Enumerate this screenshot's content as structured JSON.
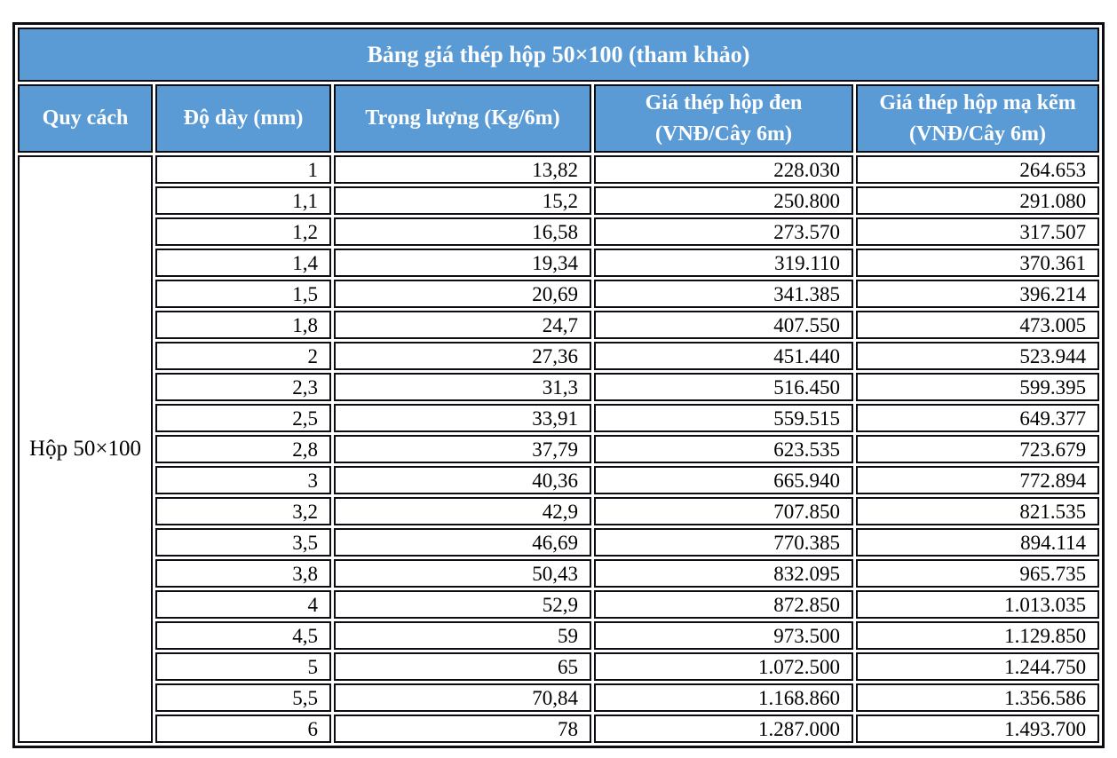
{
  "colors": {
    "header_bg": "#5b9bd5",
    "header_text": "#ffffff",
    "border": "#0c0d12",
    "cell_text": "#000000"
  },
  "chart_data": {
    "type": "table",
    "title": "Bảng giá thép hộp 50×100 (tham khảo)",
    "columns": [
      "Quy cách",
      "Độ dày (mm)",
      "Trọng lượng (Kg/6m)",
      "Giá thép hộp đen\n(VNĐ/Cây 6m)",
      "Giá thép hộp mạ kẽm\n(VNĐ/Cây 6m)"
    ],
    "spec_label": "Hộp 50×100",
    "rows": [
      [
        "1",
        "13,82",
        "228.030",
        "264.653"
      ],
      [
        "1,1",
        "15,2",
        "250.800",
        "291.080"
      ],
      [
        "1,2",
        "16,58",
        "273.570",
        "317.507"
      ],
      [
        "1,4",
        "19,34",
        "319.110",
        "370.361"
      ],
      [
        "1,5",
        "20,69",
        "341.385",
        "396.214"
      ],
      [
        "1,8",
        "24,7",
        "407.550",
        "473.005"
      ],
      [
        "2",
        "27,36",
        "451.440",
        "523.944"
      ],
      [
        "2,3",
        "31,3",
        "516.450",
        "599.395"
      ],
      [
        "2,5",
        "33,91",
        "559.515",
        "649.377"
      ],
      [
        "2,8",
        "37,79",
        "623.535",
        "723.679"
      ],
      [
        "3",
        "40,36",
        "665.940",
        "772.894"
      ],
      [
        "3,2",
        "42,9",
        "707.850",
        "821.535"
      ],
      [
        "3,5",
        "46,69",
        "770.385",
        "894.114"
      ],
      [
        "3,8",
        "50,43",
        "832.095",
        "965.735"
      ],
      [
        "4",
        "52,9",
        "872.850",
        "1.013.035"
      ],
      [
        "4,5",
        "59",
        "973.500",
        "1.129.850"
      ],
      [
        "5",
        "65",
        "1.072.500",
        "1.244.750"
      ],
      [
        "5,5",
        "70,84",
        "1.168.860",
        "1.356.586"
      ],
      [
        "6",
        "78",
        "1.287.000",
        "1.493.700"
      ]
    ]
  }
}
